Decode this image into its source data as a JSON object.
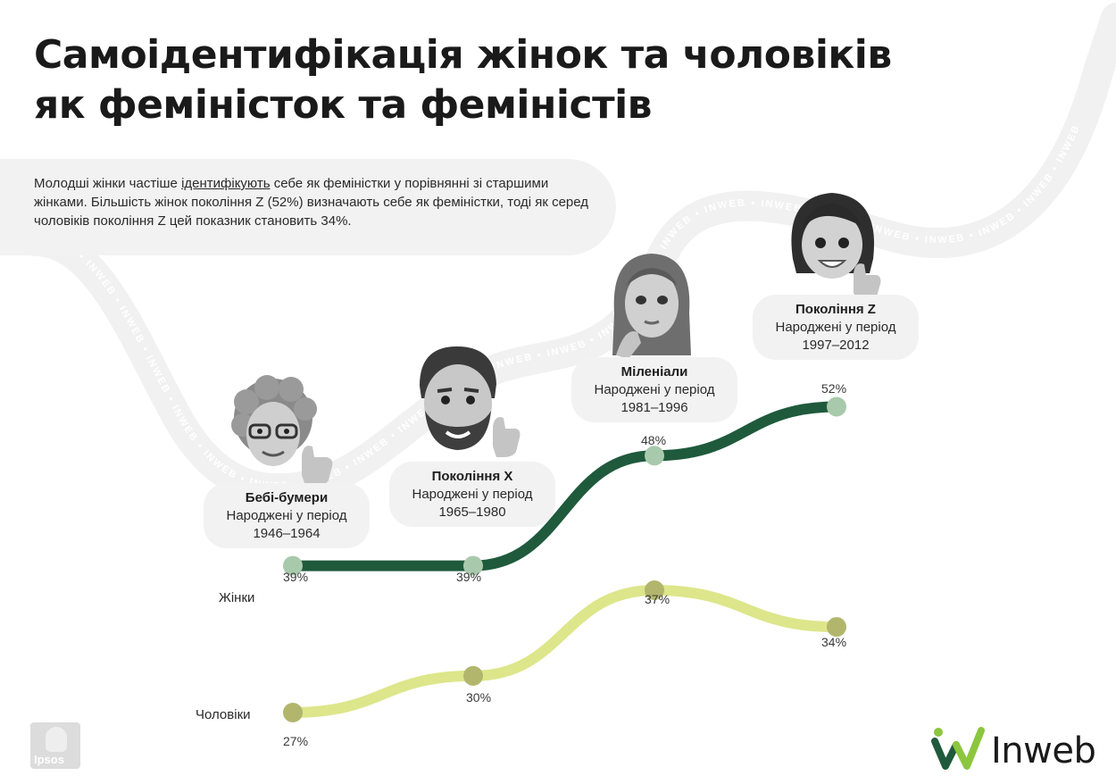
{
  "title": {
    "line1": "Самоідентифікація жінок та чоловіків",
    "line2": "як феміністок та феміністів"
  },
  "note": {
    "pre": "Молодші жінки частіше ",
    "underlined": "ідентифікують",
    "post": " себе як феміністки у порівнянні зі старшими жінками. Більшість жінок покоління Z (52%) визначають себе як феміністки, тоді як серед чоловіків покоління Z цей показник становить 34%."
  },
  "watermark_word": "INWEB",
  "generations": [
    {
      "name": "Бебі-бумери",
      "sub1": "Народжені у період",
      "sub2": "1946–1964"
    },
    {
      "name": "Покоління X",
      "sub1": "Народжені у період",
      "sub2": "1965–1980"
    },
    {
      "name": "Міленіали",
      "sub1": "Народжені у період",
      "sub2": "1981–1996"
    },
    {
      "name": "Покоління Z",
      "sub1": "Народжені у період",
      "sub2": "1997–2012"
    }
  ],
  "chart_data": {
    "type": "line",
    "categories": [
      "Бебі-бумери",
      "Покоління X",
      "Міленіали",
      "Покоління Z"
    ],
    "series": [
      {
        "name": "Жінки",
        "values": [
          39,
          39,
          48,
          52
        ],
        "labels": [
          "39%",
          "39%",
          "48%",
          "52%"
        ],
        "color": "#1f5a3c",
        "marker": "#a9c9ac"
      },
      {
        "name": "Чоловіки",
        "values": [
          27,
          30,
          37,
          34
        ],
        "labels": [
          "27%",
          "30%",
          "37%",
          "34%"
        ],
        "color": "#dde68a",
        "marker": "#b2b66c"
      }
    ]
  },
  "logos": {
    "ipsos": "Ipsos",
    "inweb": "Inweb",
    "inweb_colors": [
      "#1f5a3c",
      "#8cc63f"
    ]
  }
}
